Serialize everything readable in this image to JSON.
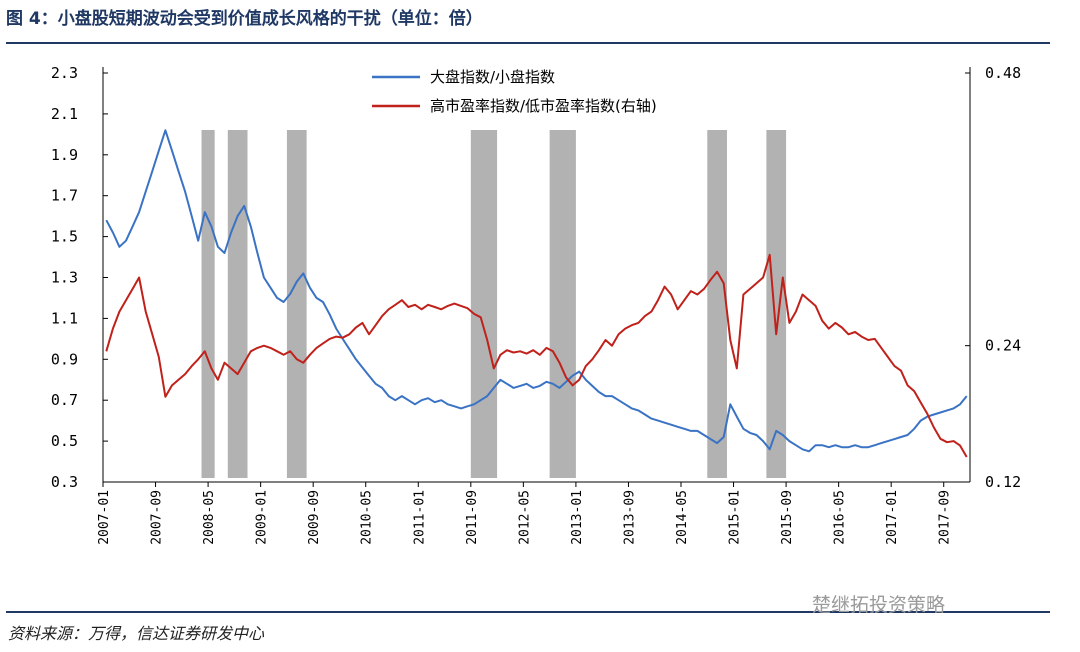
{
  "header": {
    "title": "图 4：小盘股短期波动会受到价值成长风格的干扰（单位：倍）"
  },
  "footer": {
    "source": "资料来源：万得，信达证券研发中心",
    "watermark": "楚继拓投资策略"
  },
  "colors": {
    "series1": "#3a73c4",
    "series2": "#c0211a",
    "bands": "#b2b2b2",
    "rule": "#1f3864"
  },
  "chart_data": {
    "type": "line",
    "title": "",
    "x_ticks": [
      "2007-01",
      "2007-09",
      "2008-05",
      "2009-01",
      "2009-09",
      "2010-05",
      "2011-01",
      "2011-09",
      "2012-05",
      "2013-01",
      "2013-09",
      "2014-05",
      "2015-01",
      "2015-09",
      "2016-05",
      "2017-01",
      "2017-09"
    ],
    "x_range": [
      "2007-01",
      "2017-12"
    ],
    "y_left": {
      "ticks": [
        "2.3",
        "2.1",
        "1.9",
        "1.7",
        "1.5",
        "1.3",
        "1.1",
        "0.9",
        "0.7",
        "0.5",
        "0.3"
      ],
      "range": [
        0.3,
        2.3
      ]
    },
    "y_right": {
      "ticks": [
        "0.48",
        "0.24",
        "0.12"
      ],
      "range": [
        0.12,
        0.48
      ]
    },
    "legend_position": "top-center",
    "shaded_periods": [
      [
        "2008-04",
        "2008-05"
      ],
      [
        "2008-08",
        "2008-10"
      ],
      [
        "2009-05",
        "2009-07"
      ],
      [
        "2011-09",
        "2011-12"
      ],
      [
        "2012-09",
        "2012-12"
      ],
      [
        "2014-09",
        "2014-11"
      ],
      [
        "2015-06",
        "2015-08"
      ]
    ],
    "series": [
      {
        "name": "大盘指数/小盘指数",
        "axis": "left",
        "points": [
          [
            "2007-01",
            1.58
          ],
          [
            "2007-02",
            1.52
          ],
          [
            "2007-03",
            1.45
          ],
          [
            "2007-04",
            1.48
          ],
          [
            "2007-05",
            1.55
          ],
          [
            "2007-06",
            1.62
          ],
          [
            "2007-07",
            1.72
          ],
          [
            "2007-08",
            1.82
          ],
          [
            "2007-09",
            1.92
          ],
          [
            "2007-10",
            2.02
          ],
          [
            "2007-11",
            1.92
          ],
          [
            "2007-12",
            1.82
          ],
          [
            "2008-01",
            1.72
          ],
          [
            "2008-02",
            1.6
          ],
          [
            "2008-03",
            1.48
          ],
          [
            "2008-04",
            1.62
          ],
          [
            "2008-05",
            1.55
          ],
          [
            "2008-06",
            1.45
          ],
          [
            "2008-07",
            1.42
          ],
          [
            "2008-08",
            1.52
          ],
          [
            "2008-09",
            1.6
          ],
          [
            "2008-10",
            1.65
          ],
          [
            "2008-11",
            1.55
          ],
          [
            "2008-12",
            1.42
          ],
          [
            "2009-01",
            1.3
          ],
          [
            "2009-02",
            1.25
          ],
          [
            "2009-03",
            1.2
          ],
          [
            "2009-04",
            1.18
          ],
          [
            "2009-05",
            1.22
          ],
          [
            "2009-06",
            1.28
          ],
          [
            "2009-07",
            1.32
          ],
          [
            "2009-08",
            1.25
          ],
          [
            "2009-09",
            1.2
          ],
          [
            "2009-10",
            1.18
          ],
          [
            "2009-11",
            1.12
          ],
          [
            "2009-12",
            1.05
          ],
          [
            "2010-01",
            1.0
          ],
          [
            "2010-02",
            0.95
          ],
          [
            "2010-03",
            0.9
          ],
          [
            "2010-04",
            0.86
          ],
          [
            "2010-05",
            0.82
          ],
          [
            "2010-06",
            0.78
          ],
          [
            "2010-07",
            0.76
          ],
          [
            "2010-08",
            0.72
          ],
          [
            "2010-09",
            0.7
          ],
          [
            "2010-10",
            0.72
          ],
          [
            "2010-11",
            0.7
          ],
          [
            "2010-12",
            0.68
          ],
          [
            "2011-01",
            0.7
          ],
          [
            "2011-02",
            0.71
          ],
          [
            "2011-03",
            0.69
          ],
          [
            "2011-04",
            0.7
          ],
          [
            "2011-05",
            0.68
          ],
          [
            "2011-06",
            0.67
          ],
          [
            "2011-07",
            0.66
          ],
          [
            "2011-08",
            0.67
          ],
          [
            "2011-09",
            0.68
          ],
          [
            "2011-10",
            0.7
          ],
          [
            "2011-11",
            0.72
          ],
          [
            "2011-12",
            0.76
          ],
          [
            "2012-01",
            0.8
          ],
          [
            "2012-02",
            0.78
          ],
          [
            "2012-03",
            0.76
          ],
          [
            "2012-04",
            0.77
          ],
          [
            "2012-05",
            0.78
          ],
          [
            "2012-06",
            0.76
          ],
          [
            "2012-07",
            0.77
          ],
          [
            "2012-08",
            0.79
          ],
          [
            "2012-09",
            0.78
          ],
          [
            "2012-10",
            0.76
          ],
          [
            "2012-11",
            0.79
          ],
          [
            "2012-12",
            0.82
          ],
          [
            "2013-01",
            0.84
          ],
          [
            "2013-02",
            0.8
          ],
          [
            "2013-03",
            0.77
          ],
          [
            "2013-04",
            0.74
          ],
          [
            "2013-05",
            0.72
          ],
          [
            "2013-06",
            0.72
          ],
          [
            "2013-07",
            0.7
          ],
          [
            "2013-08",
            0.68
          ],
          [
            "2013-09",
            0.66
          ],
          [
            "2013-10",
            0.65
          ],
          [
            "2013-11",
            0.63
          ],
          [
            "2013-12",
            0.61
          ],
          [
            "2014-01",
            0.6
          ],
          [
            "2014-02",
            0.59
          ],
          [
            "2014-03",
            0.58
          ],
          [
            "2014-04",
            0.57
          ],
          [
            "2014-05",
            0.56
          ],
          [
            "2014-06",
            0.55
          ],
          [
            "2014-07",
            0.55
          ],
          [
            "2014-08",
            0.53
          ],
          [
            "2014-09",
            0.51
          ],
          [
            "2014-10",
            0.49
          ],
          [
            "2014-11",
            0.52
          ],
          [
            "2014-12",
            0.68
          ],
          [
            "2015-01",
            0.62
          ],
          [
            "2015-02",
            0.56
          ],
          [
            "2015-03",
            0.54
          ],
          [
            "2015-04",
            0.53
          ],
          [
            "2015-05",
            0.5
          ],
          [
            "2015-06",
            0.46
          ],
          [
            "2015-07",
            0.55
          ],
          [
            "2015-08",
            0.53
          ],
          [
            "2015-09",
            0.5
          ],
          [
            "2015-10",
            0.48
          ],
          [
            "2015-11",
            0.46
          ],
          [
            "2015-12",
            0.45
          ],
          [
            "2016-01",
            0.48
          ],
          [
            "2016-02",
            0.48
          ],
          [
            "2016-03",
            0.47
          ],
          [
            "2016-04",
            0.48
          ],
          [
            "2016-05",
            0.47
          ],
          [
            "2016-06",
            0.47
          ],
          [
            "2016-07",
            0.48
          ],
          [
            "2016-08",
            0.47
          ],
          [
            "2016-09",
            0.47
          ],
          [
            "2016-10",
            0.48
          ],
          [
            "2016-11",
            0.49
          ],
          [
            "2016-12",
            0.5
          ],
          [
            "2017-01",
            0.51
          ],
          [
            "2017-02",
            0.52
          ],
          [
            "2017-03",
            0.53
          ],
          [
            "2017-04",
            0.56
          ],
          [
            "2017-05",
            0.6
          ],
          [
            "2017-06",
            0.62
          ],
          [
            "2017-07",
            0.63
          ],
          [
            "2017-08",
            0.64
          ],
          [
            "2017-09",
            0.65
          ],
          [
            "2017-10",
            0.66
          ],
          [
            "2017-11",
            0.68
          ],
          [
            "2017-12",
            0.72
          ]
        ]
      },
      {
        "name": "高市盈率指数/低市盈率指数(右轴)",
        "axis": "right",
        "points": [
          [
            "2007-01",
            0.235
          ],
          [
            "2007-02",
            0.255
          ],
          [
            "2007-03",
            0.27
          ],
          [
            "2007-04",
            0.28
          ],
          [
            "2007-05",
            0.29
          ],
          [
            "2007-06",
            0.3
          ],
          [
            "2007-07",
            0.27
          ],
          [
            "2007-08",
            0.25
          ],
          [
            "2007-09",
            0.23
          ],
          [
            "2007-10",
            0.195
          ],
          [
            "2007-11",
            0.205
          ],
          [
            "2007-12",
            0.21
          ],
          [
            "2008-01",
            0.215
          ],
          [
            "2008-02",
            0.222
          ],
          [
            "2008-03",
            0.228
          ],
          [
            "2008-04",
            0.235
          ],
          [
            "2008-05",
            0.22
          ],
          [
            "2008-06",
            0.21
          ],
          [
            "2008-07",
            0.225
          ],
          [
            "2008-08",
            0.22
          ],
          [
            "2008-09",
            0.215
          ],
          [
            "2008-10",
            0.225
          ],
          [
            "2008-11",
            0.235
          ],
          [
            "2008-12",
            0.238
          ],
          [
            "2009-01",
            0.24
          ],
          [
            "2009-02",
            0.238
          ],
          [
            "2009-03",
            0.235
          ],
          [
            "2009-04",
            0.232
          ],
          [
            "2009-05",
            0.235
          ],
          [
            "2009-06",
            0.228
          ],
          [
            "2009-07",
            0.225
          ],
          [
            "2009-08",
            0.232
          ],
          [
            "2009-09",
            0.238
          ],
          [
            "2009-10",
            0.242
          ],
          [
            "2009-11",
            0.246
          ],
          [
            "2009-12",
            0.248
          ],
          [
            "2010-01",
            0.247
          ],
          [
            "2010-02",
            0.25
          ],
          [
            "2010-03",
            0.256
          ],
          [
            "2010-04",
            0.26
          ],
          [
            "2010-05",
            0.25
          ],
          [
            "2010-06",
            0.258
          ],
          [
            "2010-07",
            0.266
          ],
          [
            "2010-08",
            0.272
          ],
          [
            "2010-09",
            0.276
          ],
          [
            "2010-10",
            0.28
          ],
          [
            "2010-11",
            0.274
          ],
          [
            "2010-12",
            0.276
          ],
          [
            "2011-01",
            0.272
          ],
          [
            "2011-02",
            0.276
          ],
          [
            "2011-03",
            0.274
          ],
          [
            "2011-04",
            0.272
          ],
          [
            "2011-05",
            0.275
          ],
          [
            "2011-06",
            0.277
          ],
          [
            "2011-07",
            0.275
          ],
          [
            "2011-08",
            0.273
          ],
          [
            "2011-09",
            0.268
          ],
          [
            "2011-10",
            0.265
          ],
          [
            "2011-11",
            0.245
          ],
          [
            "2011-12",
            0.22
          ],
          [
            "2012-01",
            0.232
          ],
          [
            "2012-02",
            0.236
          ],
          [
            "2012-03",
            0.234
          ],
          [
            "2012-04",
            0.235
          ],
          [
            "2012-05",
            0.233
          ],
          [
            "2012-06",
            0.236
          ],
          [
            "2012-07",
            0.232
          ],
          [
            "2012-08",
            0.238
          ],
          [
            "2012-09",
            0.235
          ],
          [
            "2012-10",
            0.225
          ],
          [
            "2012-11",
            0.212
          ],
          [
            "2012-12",
            0.205
          ],
          [
            "2013-01",
            0.21
          ],
          [
            "2013-02",
            0.222
          ],
          [
            "2013-03",
            0.228
          ],
          [
            "2013-04",
            0.236
          ],
          [
            "2013-05",
            0.245
          ],
          [
            "2013-06",
            0.24
          ],
          [
            "2013-07",
            0.25
          ],
          [
            "2013-08",
            0.255
          ],
          [
            "2013-09",
            0.258
          ],
          [
            "2013-10",
            0.26
          ],
          [
            "2013-11",
            0.266
          ],
          [
            "2013-12",
            0.27
          ],
          [
            "2014-01",
            0.28
          ],
          [
            "2014-02",
            0.292
          ],
          [
            "2014-03",
            0.285
          ],
          [
            "2014-04",
            0.272
          ],
          [
            "2014-05",
            0.28
          ],
          [
            "2014-06",
            0.288
          ],
          [
            "2014-07",
            0.285
          ],
          [
            "2014-08",
            0.29
          ],
          [
            "2014-09",
            0.298
          ],
          [
            "2014-10",
            0.305
          ],
          [
            "2014-11",
            0.295
          ],
          [
            "2014-12",
            0.245
          ],
          [
            "2015-01",
            0.22
          ],
          [
            "2015-02",
            0.285
          ],
          [
            "2015-03",
            0.29
          ],
          [
            "2015-04",
            0.295
          ],
          [
            "2015-05",
            0.3
          ],
          [
            "2015-06",
            0.32
          ],
          [
            "2015-07",
            0.25
          ],
          [
            "2015-08",
            0.3
          ],
          [
            "2015-09",
            0.26
          ],
          [
            "2015-10",
            0.27
          ],
          [
            "2015-11",
            0.285
          ],
          [
            "2015-12",
            0.28
          ],
          [
            "2016-01",
            0.275
          ],
          [
            "2016-02",
            0.262
          ],
          [
            "2016-03",
            0.255
          ],
          [
            "2016-04",
            0.26
          ],
          [
            "2016-05",
            0.256
          ],
          [
            "2016-06",
            0.25
          ],
          [
            "2016-07",
            0.252
          ],
          [
            "2016-08",
            0.248
          ],
          [
            "2016-09",
            0.245
          ],
          [
            "2016-10",
            0.246
          ],
          [
            "2016-11",
            0.238
          ],
          [
            "2016-12",
            0.23
          ],
          [
            "2017-01",
            0.222
          ],
          [
            "2017-02",
            0.218
          ],
          [
            "2017-03",
            0.205
          ],
          [
            "2017-04",
            0.2
          ],
          [
            "2017-05",
            0.19
          ],
          [
            "2017-06",
            0.18
          ],
          [
            "2017-07",
            0.168
          ],
          [
            "2017-08",
            0.158
          ],
          [
            "2017-09",
            0.155
          ],
          [
            "2017-10",
            0.156
          ],
          [
            "2017-11",
            0.152
          ],
          [
            "2017-12",
            0.142
          ]
        ]
      }
    ]
  }
}
